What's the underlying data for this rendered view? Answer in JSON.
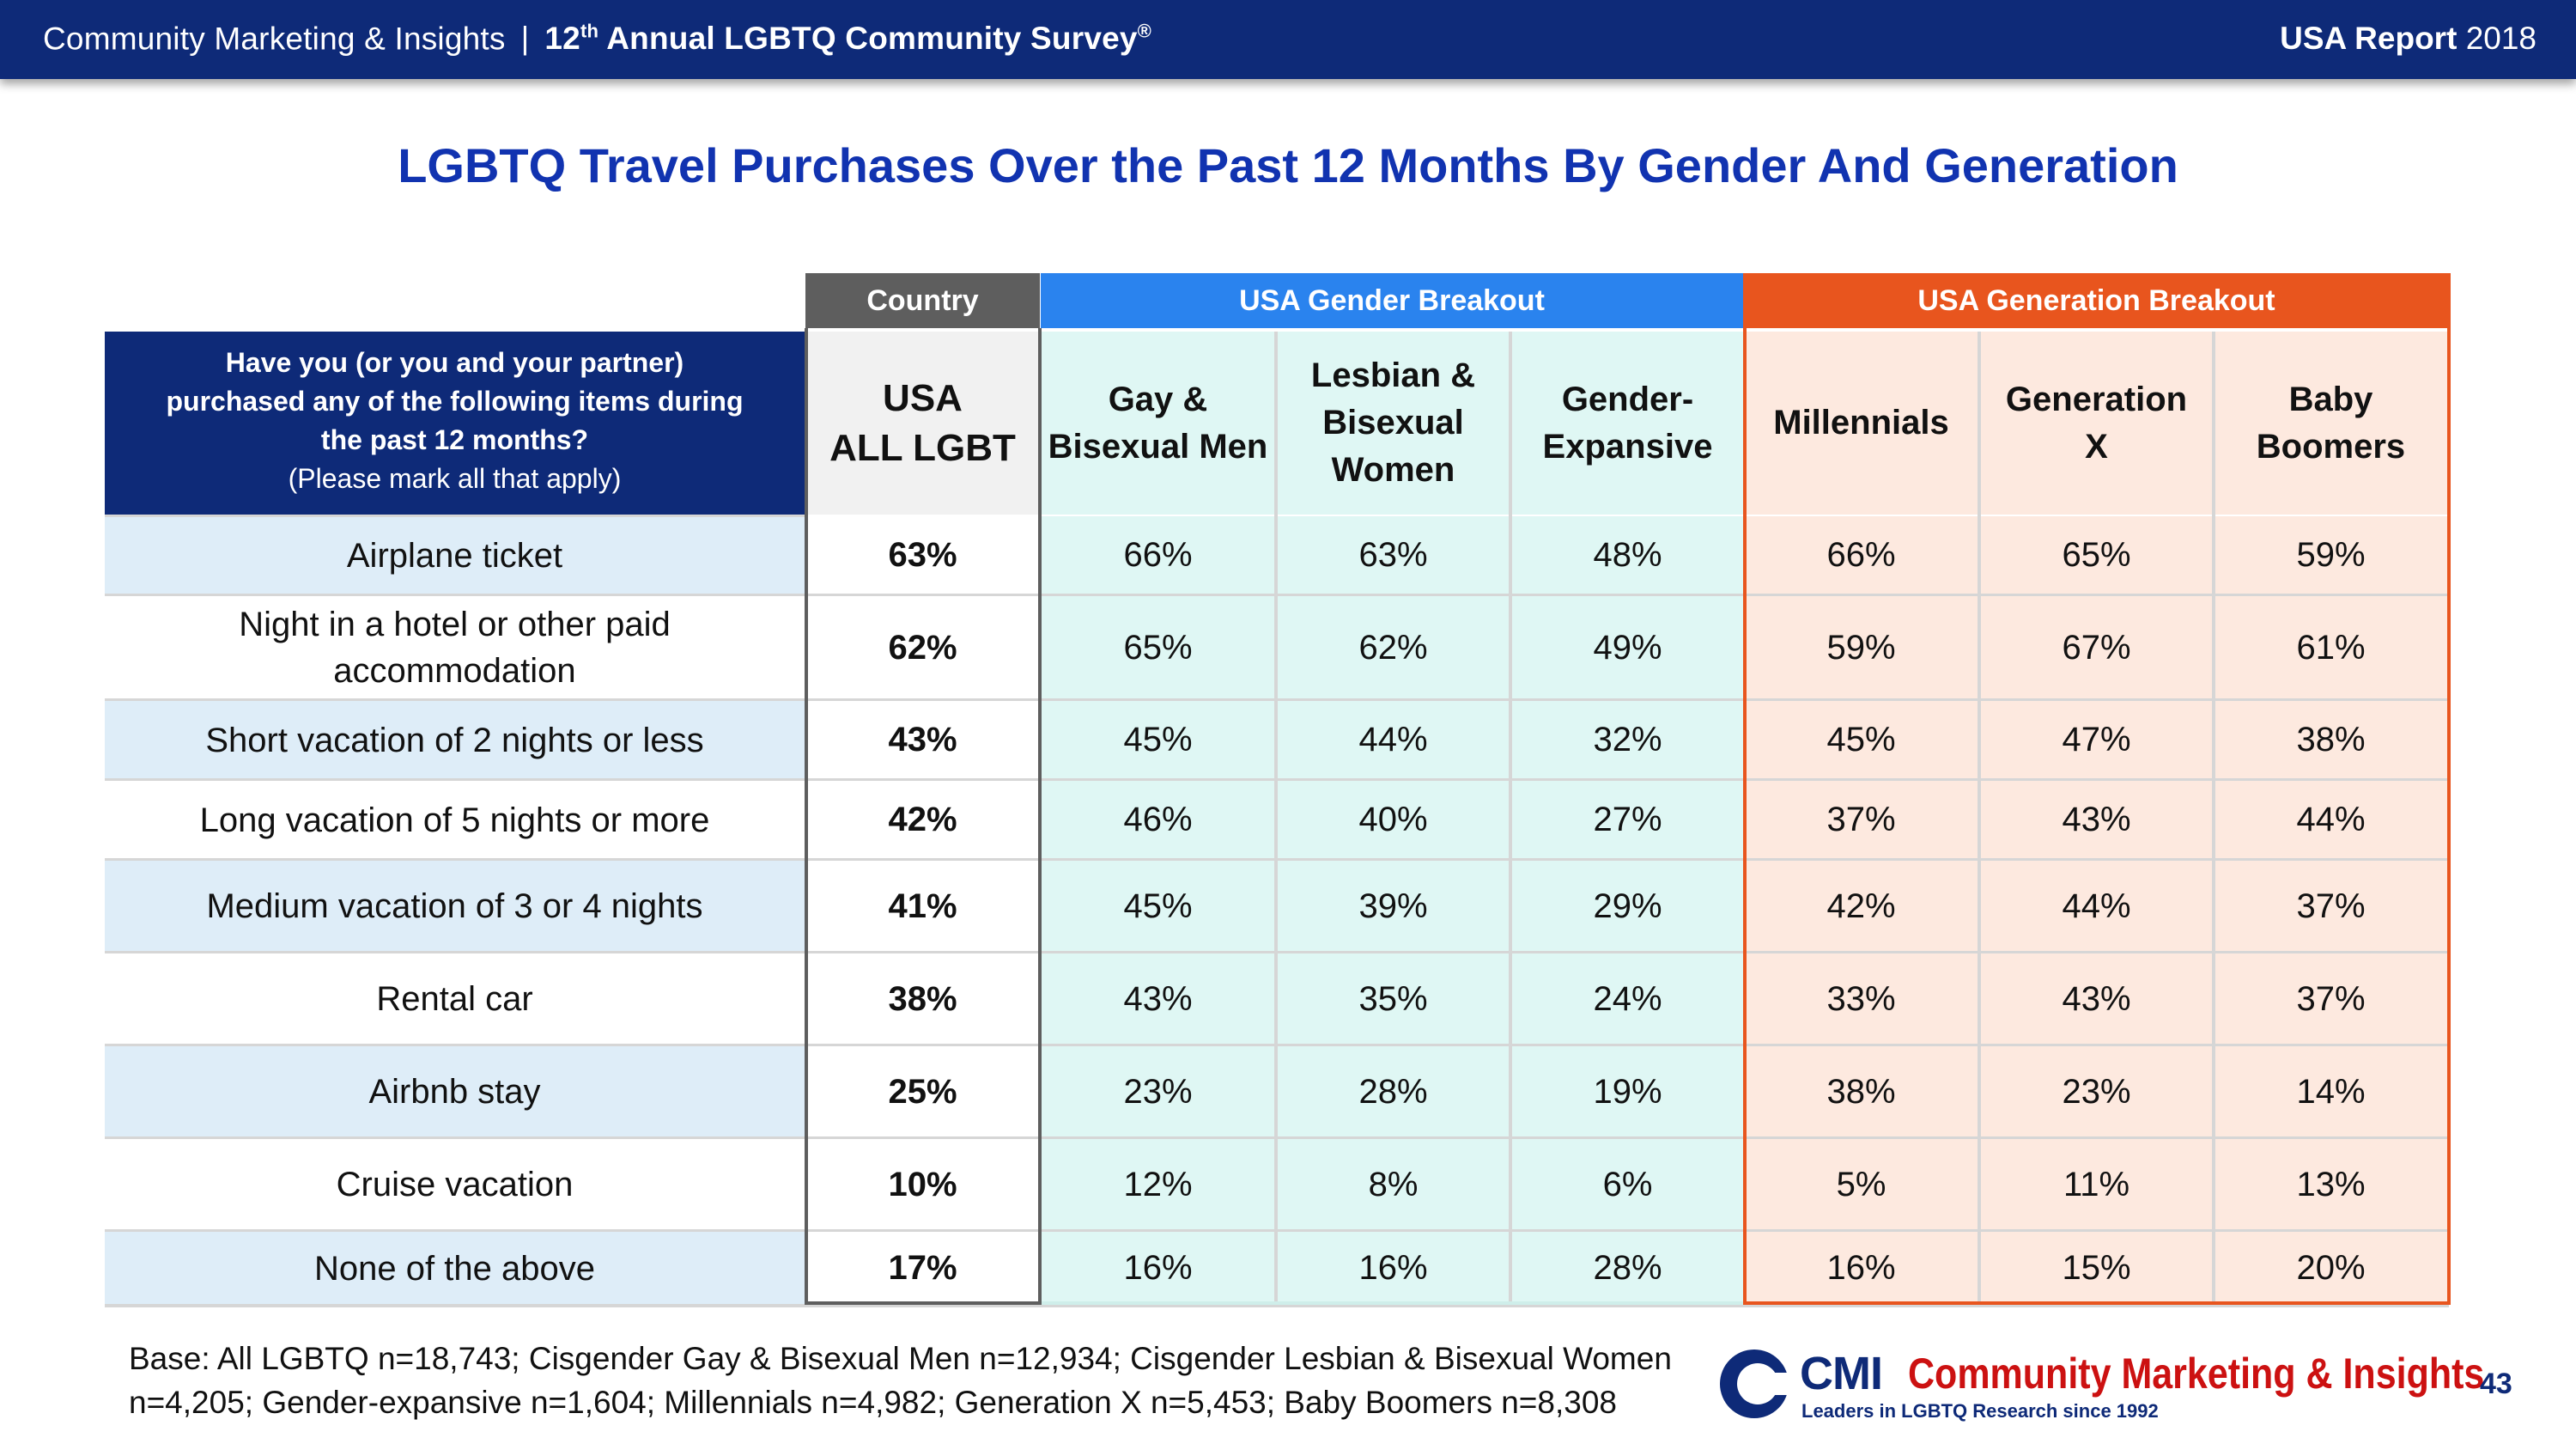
{
  "header": {
    "org": "Community Marketing & Insights",
    "separator": "|",
    "survey_ordinal": "12",
    "survey_ordinal_suffix": "th",
    "survey_name": "Annual LGBTQ Community Survey",
    "survey_mark": "®",
    "report_bold": "USA Report",
    "report_year": "2018"
  },
  "title": "LGBTQ Travel Purchases Over the Past 12 Months By Gender And Generation",
  "groups": {
    "country": "Country",
    "gender": "USA Gender Breakout",
    "generation": "USA Generation Breakout"
  },
  "question": {
    "line1": "Have you (or you and your partner)",
    "line2": "purchased any of the following items during",
    "line3": "the past 12 months?",
    "note": "(Please mark all that apply)"
  },
  "columns": [
    {
      "l1": "USA",
      "l2": "ALL LGBT",
      "l3": ""
    },
    {
      "l1": "Gay &",
      "l2": "Bisexual Men",
      "l3": ""
    },
    {
      "l1": "Lesbian &",
      "l2": "Bisexual",
      "l3": "Women"
    },
    {
      "l1": "Gender-",
      "l2": "Expansive",
      "l3": ""
    },
    {
      "l1": "Millennials",
      "l2": "",
      "l3": ""
    },
    {
      "l1": "Generation",
      "l2": "X",
      "l3": ""
    },
    {
      "l1": "Baby",
      "l2": "Boomers",
      "l3": ""
    }
  ],
  "rows": [
    {
      "label": "Airplane ticket",
      "label2": "",
      "v": [
        "63%",
        "66%",
        "63%",
        "48%",
        "66%",
        "65%",
        "59%"
      ]
    },
    {
      "label": "Night in a hotel or other paid",
      "label2": "accommodation",
      "v": [
        "62%",
        "65%",
        "62%",
        "49%",
        "59%",
        "67%",
        "61%"
      ]
    },
    {
      "label": "Short vacation of 2 nights or less",
      "label2": "",
      "v": [
        "43%",
        "45%",
        "44%",
        "32%",
        "45%",
        "47%",
        "38%"
      ]
    },
    {
      "label": "Long vacation of 5 nights or more",
      "label2": "",
      "v": [
        "42%",
        "46%",
        "40%",
        "27%",
        "37%",
        "43%",
        "44%"
      ]
    },
    {
      "label": "Medium vacation of 3 or 4 nights",
      "label2": "",
      "v": [
        "41%",
        "45%",
        "39%",
        "29%",
        "42%",
        "44%",
        "37%"
      ]
    },
    {
      "label": "Rental car",
      "label2": "",
      "v": [
        "38%",
        "43%",
        "35%",
        "24%",
        "33%",
        "43%",
        "37%"
      ]
    },
    {
      "label": "Airbnb stay",
      "label2": "",
      "v": [
        "25%",
        "23%",
        "28%",
        "19%",
        "38%",
        "23%",
        "14%"
      ]
    },
    {
      "label": "Cruise vacation",
      "label2": "",
      "v": [
        "10%",
        "12%",
        "8%",
        "6%",
        "5%",
        "11%",
        "13%"
      ]
    },
    {
      "label": "None of the above",
      "label2": "",
      "v": [
        "17%",
        "16%",
        "16%",
        "28%",
        "16%",
        "15%",
        "20%"
      ]
    }
  ],
  "base_note": "Base: All LGBTQ n=18,743; Cisgender Gay & Bisexual Men n=12,934; Cisgender Lesbian & Bisexual Women n=4,205; Gender-expansive n=1,604; Millennials n=4,982; Generation X n=5,453; Baby Boomers n=8,308",
  "logo": {
    "abbr": "CMI",
    "name": "Community Marketing & Insights",
    "tagline": "Leaders in LGBTQ Research since 1992"
  },
  "page_number": "43",
  "colors": {
    "navy": "#0e2a78",
    "title_blue": "#1133b0",
    "gender_blue": "#2a83ee",
    "generation_orange": "#e8551e",
    "country_gray": "#5e5e5e",
    "label_row_blue": "#deedf8",
    "gender_fill": "#dff7f4",
    "generation_fill": "#fde9df",
    "usa_fill": "#f1f1f1"
  }
}
